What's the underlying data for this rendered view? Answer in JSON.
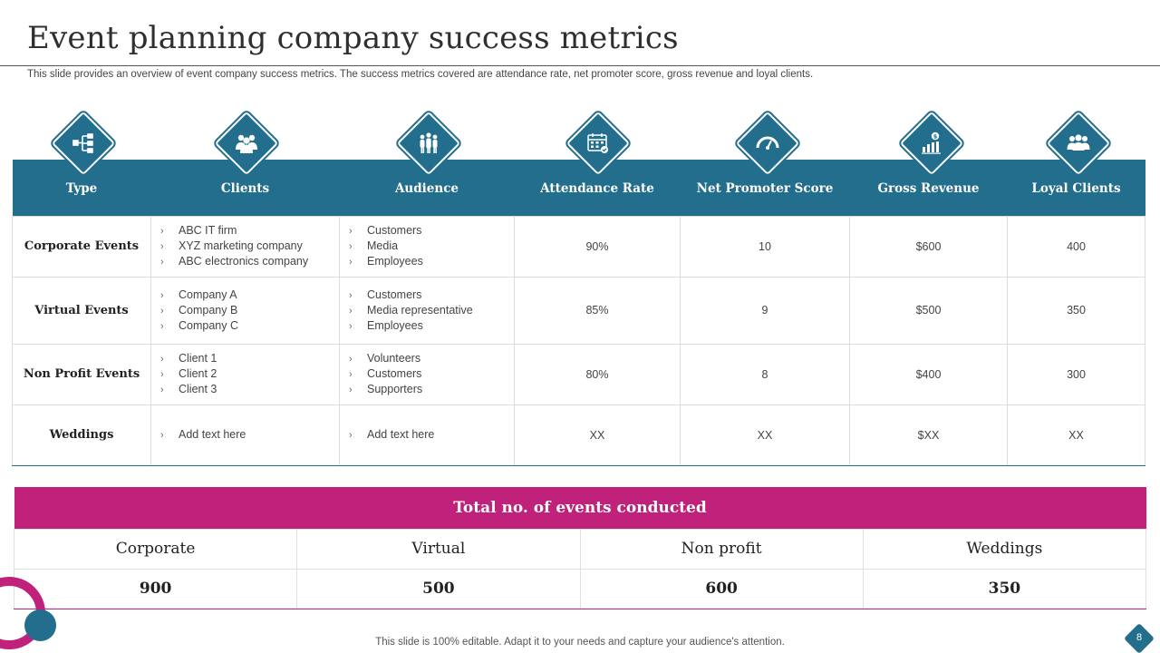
{
  "title": "Event planning company success metrics",
  "subtitle": "This slide provides an overview of event company success metrics. The success metrics covered are attendance rate, net promoter score, gross revenue and loyal clients.",
  "headers": [
    {
      "label": "Type",
      "icon": "hierarchy-icon"
    },
    {
      "label": "Clients",
      "icon": "clients-icon"
    },
    {
      "label": "Audience",
      "icon": "audience-icon"
    },
    {
      "label": "Attendance Rate",
      "icon": "calendar-icon"
    },
    {
      "label": "Net Promoter Score",
      "icon": "gauge-icon"
    },
    {
      "label": "Gross Revenue",
      "icon": "revenue-chart-icon"
    },
    {
      "label": "Loyal Clients",
      "icon": "group-icon"
    }
  ],
  "rows": [
    {
      "type": "Corporate Events",
      "clients": [
        "ABC IT firm",
        "XYZ marketing company",
        "ABC electronics company"
      ],
      "audience": [
        "Customers",
        "Media",
        "Employees"
      ],
      "attendance": "90%",
      "nps": "10",
      "revenue": "$600",
      "loyal": "400"
    },
    {
      "type": "Virtual Events",
      "clients": [
        "Company A",
        "Company B",
        "Company C"
      ],
      "audience": [
        "Customers",
        "Media representative",
        "Employees"
      ],
      "attendance": "85%",
      "nps": "9",
      "revenue": "$500",
      "loyal": "350"
    },
    {
      "type": "Non Profit Events",
      "clients": [
        "Client 1",
        "Client 2",
        "Client 3"
      ],
      "audience": [
        "Volunteers",
        "Customers",
        "Supporters"
      ],
      "attendance": "80%",
      "nps": "8",
      "revenue": "$400",
      "loyal": "300"
    },
    {
      "type": "Weddings",
      "clients": [
        "Add text here"
      ],
      "audience": [
        "Add text here"
      ],
      "attendance": "XX",
      "nps": "XX",
      "revenue": "$XX",
      "loyal": "XX"
    }
  ],
  "events": {
    "heading": "Total no. of events conducted",
    "labels": [
      "Corporate",
      "Virtual",
      "Non profit",
      "Weddings"
    ],
    "values": [
      "900",
      "500",
      "600",
      "350"
    ]
  },
  "footer": "This slide is 100% editable. Adapt it to your needs and capture your audience's attention.",
  "page_number": "8",
  "colors": {
    "primary": "#236e8c",
    "accent": "#c0217a"
  }
}
